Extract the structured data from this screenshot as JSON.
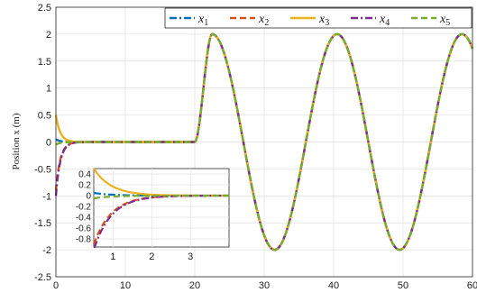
{
  "chart_data": {
    "type": "line",
    "title": "",
    "xlabel": "",
    "ylabel": "Position x (m)",
    "xlim": [
      0,
      60
    ],
    "ylim": [
      -2.5,
      2.5
    ],
    "xticks": [
      "0",
      "10",
      "20",
      "30",
      "40",
      "50",
      "60"
    ],
    "yticks": [
      "-2.5",
      "-2",
      "-1.5",
      "-1",
      "-0.5",
      "0",
      "0.5",
      "1",
      "1.5",
      "2",
      "2.5"
    ],
    "grid": true,
    "legend_position": "top-right",
    "reference": {
      "description_points": [
        [
          0,
          0
        ],
        [
          20,
          0
        ],
        [
          21,
          0.6
        ],
        [
          22.5,
          2.0
        ],
        [
          31.5,
          -2.0
        ],
        [
          40.5,
          2.0
        ],
        [
          49.5,
          -2.0
        ],
        [
          58.5,
          2.0
        ],
        [
          60,
          1.85
        ]
      ]
    },
    "series": [
      {
        "name": "x1",
        "label_main": "x",
        "label_sub": "1",
        "color": "#0072BD",
        "dash": "dashdot",
        "initial": 0.05
      },
      {
        "name": "x2",
        "label_main": "x",
        "label_sub": "2",
        "color": "#D95319",
        "dash": "dashed",
        "initial": -0.9
      },
      {
        "name": "x3",
        "label_main": "x",
        "label_sub": "3",
        "color": "#EDB120",
        "dash": "solid",
        "initial": 0.5
      },
      {
        "name": "x4",
        "label_main": "x",
        "label_sub": "4",
        "color": "#7E2F8E",
        "dash": "dashdot",
        "initial": -1.0
      },
      {
        "name": "x5",
        "label_main": "x",
        "label_sub": "5",
        "color": "#77AC30",
        "dash": "dashed",
        "initial": -0.05
      }
    ],
    "inset": {
      "xlim": [
        0.5,
        4
      ],
      "ylim": [
        -0.95,
        0.5
      ],
      "xticks": [
        "1",
        "2",
        "3"
      ],
      "yticks": [
        "0.4",
        "0.2",
        "0",
        "-0.2",
        "-0.4",
        "-0.6",
        "-0.8"
      ]
    }
  }
}
